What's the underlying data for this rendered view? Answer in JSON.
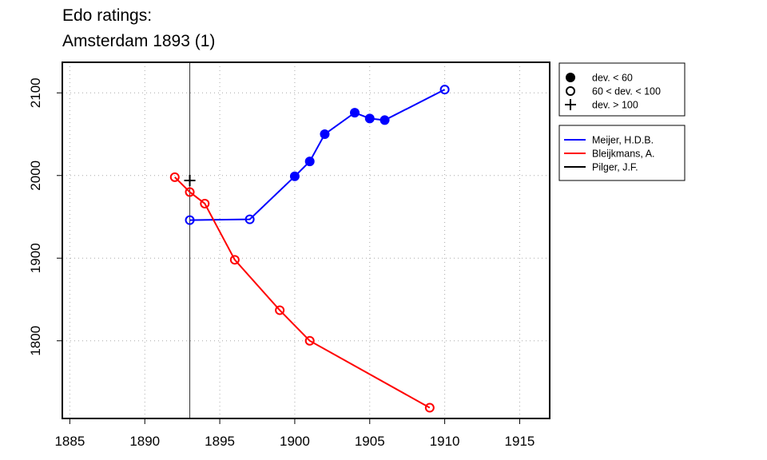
{
  "title_line1": "Edo ratings:",
  "title_line2": "Amsterdam 1893 (1)",
  "chart_data": {
    "type": "line",
    "xlim": [
      1884.5,
      1917
    ],
    "ylim": [
      1706,
      2137
    ],
    "x_ticks": [
      1885,
      1890,
      1895,
      1900,
      1905,
      1910,
      1915
    ],
    "y_ticks": [
      1800,
      1900,
      2000,
      2100
    ],
    "grid": true,
    "vline_x": 1893,
    "marker_legend": [
      {
        "symbol": "filled",
        "label": "dev. < 60"
      },
      {
        "symbol": "open",
        "label": "60 < dev. < 100"
      },
      {
        "symbol": "plus",
        "label": "dev. > 100"
      }
    ],
    "series": [
      {
        "name": "Meijer, H.D.B.",
        "color": "#0000ff",
        "points": [
          {
            "x": 1893,
            "y": 1946,
            "m": "open"
          },
          {
            "x": 1897,
            "y": 1947,
            "m": "open"
          },
          {
            "x": 1900,
            "y": 1999,
            "m": "filled"
          },
          {
            "x": 1901,
            "y": 2017,
            "m": "filled"
          },
          {
            "x": 1902,
            "y": 2050,
            "m": "filled"
          },
          {
            "x": 1904,
            "y": 2076,
            "m": "filled"
          },
          {
            "x": 1905,
            "y": 2069,
            "m": "filled"
          },
          {
            "x": 1906,
            "y": 2067,
            "m": "filled"
          },
          {
            "x": 1910,
            "y": 2104,
            "m": "open"
          }
        ]
      },
      {
        "name": "Bleijkmans, A.",
        "color": "#ff0000",
        "points": [
          {
            "x": 1892,
            "y": 1998,
            "m": "open"
          },
          {
            "x": 1893,
            "y": 1980,
            "m": "open"
          },
          {
            "x": 1894,
            "y": 1966,
            "m": "open"
          },
          {
            "x": 1896,
            "y": 1898,
            "m": "open"
          },
          {
            "x": 1899,
            "y": 1837,
            "m": "open"
          },
          {
            "x": 1901,
            "y": 1800,
            "m": "open"
          },
          {
            "x": 1909,
            "y": 1719,
            "m": "open"
          }
        ]
      },
      {
        "name": "Pilger, J.F.",
        "color": "#000000",
        "points": [
          {
            "x": 1893,
            "y": 1994,
            "m": "plus"
          }
        ]
      }
    ]
  }
}
